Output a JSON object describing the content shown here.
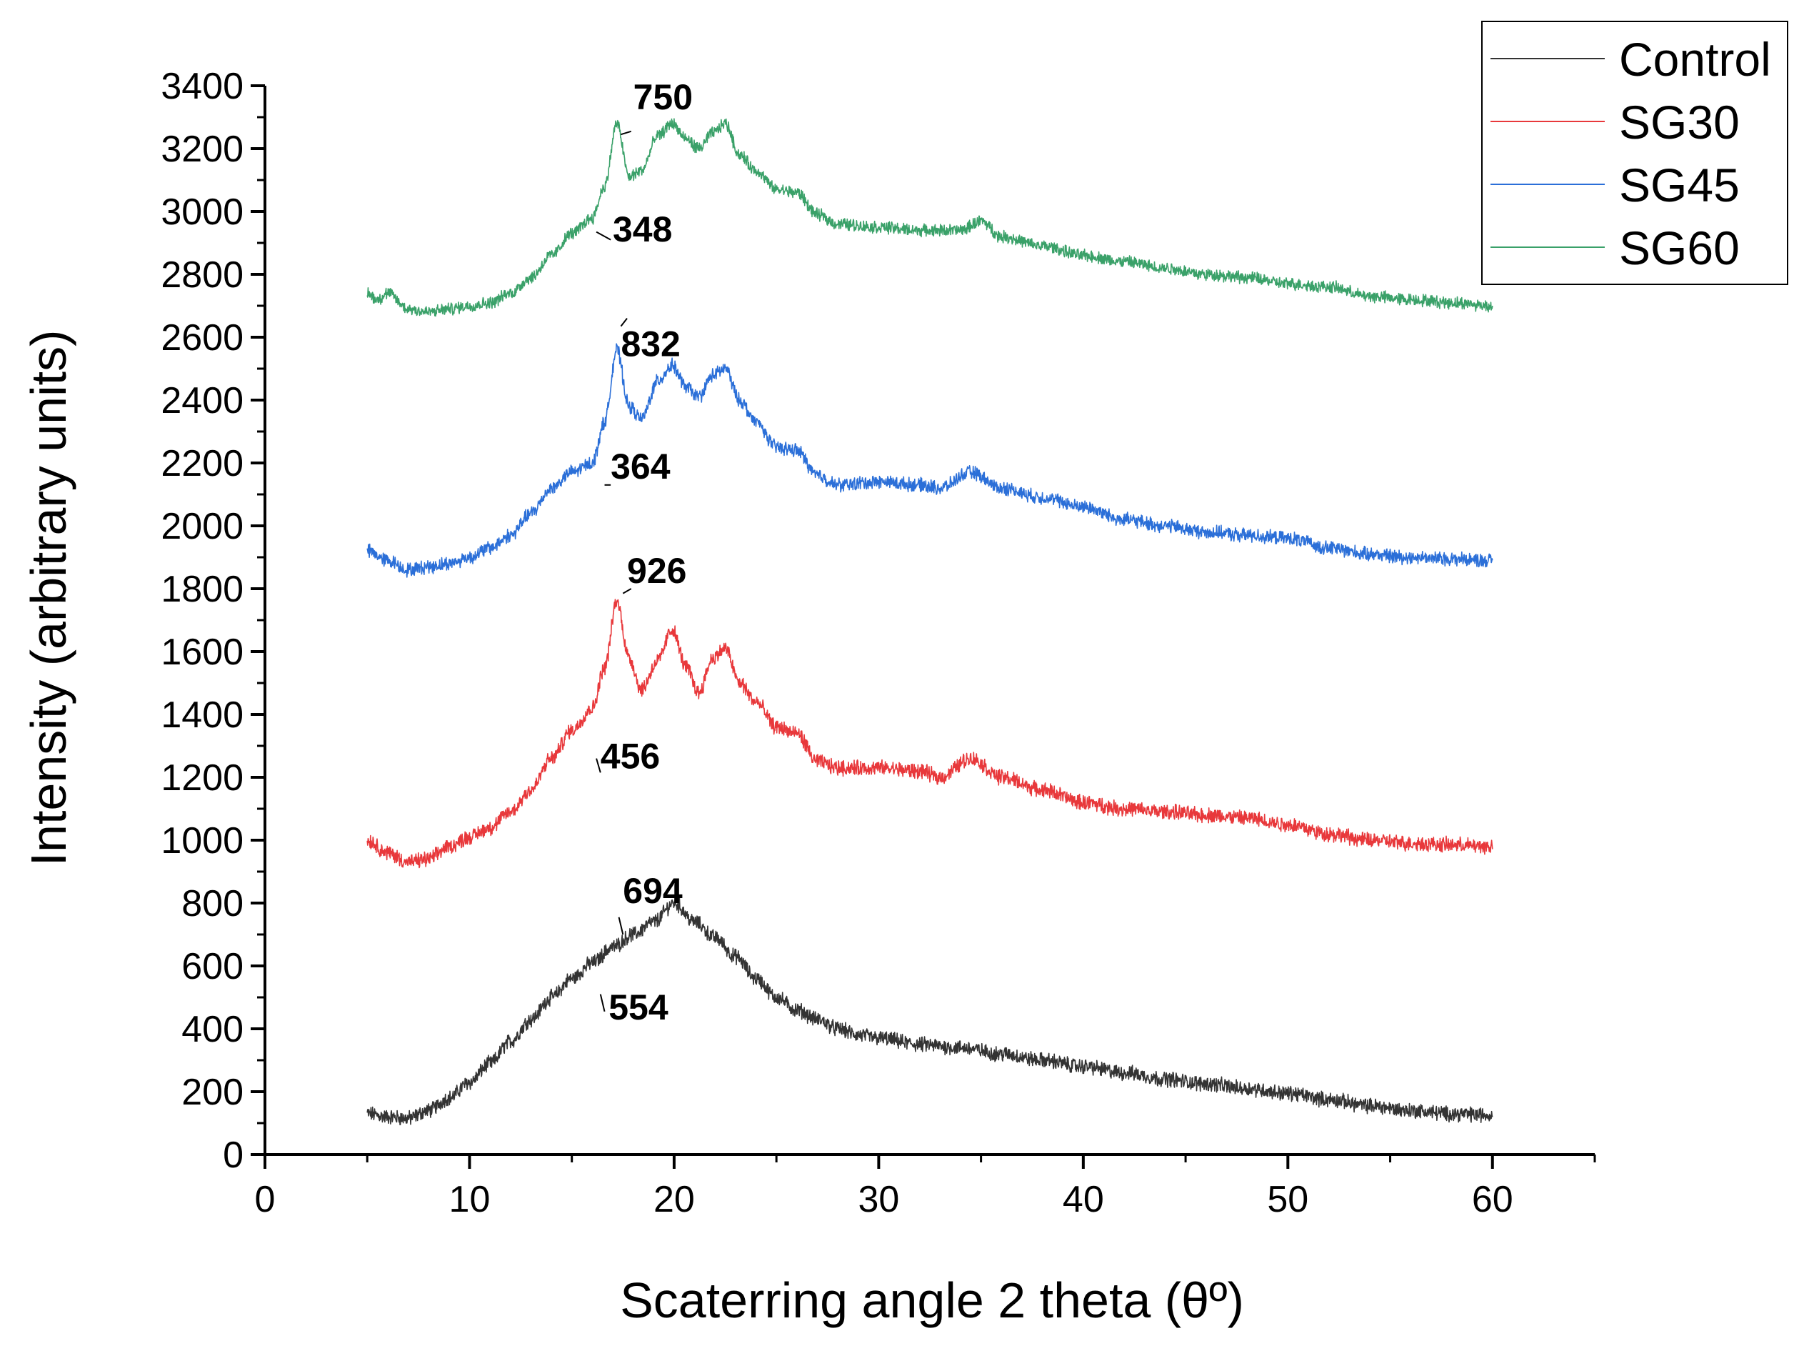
{
  "chart_data": {
    "type": "line",
    "title": "",
    "xlabel": "Scaterring angle 2 theta (θº)",
    "ylabel": "Intensity (arbitrary units)",
    "xlim": [
      0,
      65
    ],
    "ylim": [
      0,
      3400
    ],
    "x_ticks": [
      0,
      10,
      20,
      30,
      40,
      50,
      60
    ],
    "y_ticks": [
      0,
      200,
      400,
      600,
      800,
      1000,
      1200,
      1400,
      1600,
      1800,
      2000,
      2200,
      2400,
      2600,
      2800,
      3000,
      3200,
      3400
    ],
    "x_tick_labels": [
      "0",
      "10",
      "20",
      "30",
      "40",
      "50",
      "60"
    ],
    "y_tick_labels": [
      "0",
      "200",
      "400",
      "600",
      "800",
      "1000",
      "1200",
      "1400",
      "1600",
      "1800",
      "2000",
      "2200",
      "2400",
      "2600",
      "2800",
      "3000",
      "3200",
      "3400"
    ],
    "legend_position": "top-right",
    "series": [
      {
        "name": "Control",
        "color": "#333333",
        "x": [
          5,
          6,
          7,
          8,
          9,
          10,
          11,
          12,
          13,
          14,
          15,
          16,
          17,
          18,
          19,
          20,
          21,
          22,
          23,
          24,
          25,
          26,
          27,
          28,
          29,
          30,
          32,
          34,
          36,
          38,
          40,
          42,
          44,
          46,
          48,
          50,
          52,
          54,
          56,
          58,
          60
        ],
        "y": [
          130,
          120,
          115,
          140,
          180,
          230,
          290,
          360,
          430,
          500,
          560,
          610,
          660,
          700,
          740,
          800,
          740,
          690,
          630,
          560,
          500,
          460,
          430,
          400,
          380,
          370,
          350,
          340,
          320,
          300,
          280,
          260,
          240,
          225,
          210,
          195,
          175,
          155,
          140,
          130,
          125
        ],
        "noise": 20
      },
      {
        "name": "SG30",
        "color": "#e8383b",
        "x": [
          5,
          6,
          7,
          8,
          9,
          10,
          11,
          12,
          13,
          14,
          15,
          16,
          16.6,
          17.2,
          17.8,
          18.4,
          19.2,
          19.9,
          20.6,
          21.2,
          21.9,
          22.5,
          23.2,
          24,
          25,
          26,
          27,
          28,
          30,
          32,
          33,
          34.5,
          36,
          38,
          40,
          42,
          44,
          46,
          48,
          50,
          52,
          54,
          56,
          58,
          60
        ],
        "y": [
          1000,
          960,
          930,
          940,
          980,
          1010,
          1040,
          1090,
          1160,
          1260,
          1350,
          1420,
          1550,
          1760,
          1580,
          1480,
          1570,
          1670,
          1550,
          1470,
          1580,
          1610,
          1500,
          1440,
          1360,
          1340,
          1250,
          1230,
          1230,
          1220,
          1200,
          1260,
          1200,
          1160,
          1120,
          1100,
          1090,
          1080,
          1070,
          1050,
          1020,
          1000,
          990,
          985,
          980
        ],
        "noise": 20
      },
      {
        "name": "SG45",
        "color": "#2b6fd8",
        "x": [
          5,
          6,
          7,
          8,
          9,
          10,
          11,
          12,
          13,
          14,
          15,
          16,
          16.6,
          17.2,
          17.8,
          18.4,
          19.2,
          19.9,
          20.6,
          21.2,
          21.9,
          22.5,
          23.2,
          24,
          25,
          26,
          27,
          28,
          30,
          32,
          33,
          34.5,
          36,
          38,
          40,
          42,
          44,
          46,
          48,
          50,
          52,
          54,
          56,
          58,
          60
        ],
        "y": [
          1920,
          1890,
          1860,
          1870,
          1880,
          1900,
          1930,
          1970,
          2040,
          2120,
          2170,
          2200,
          2330,
          2560,
          2380,
          2340,
          2460,
          2510,
          2440,
          2410,
          2480,
          2500,
          2400,
          2330,
          2250,
          2240,
          2160,
          2130,
          2140,
          2130,
          2120,
          2170,
          2120,
          2090,
          2060,
          2020,
          2000,
          1980,
          1970,
          1960,
          1930,
          1910,
          1900,
          1895,
          1890
        ],
        "noise": 18
      },
      {
        "name": "SG60",
        "color": "#3aa169",
        "x": [
          5,
          5.5,
          6,
          7,
          8,
          9,
          10,
          11,
          12,
          13,
          14,
          15,
          16,
          16.6,
          17.2,
          17.8,
          18.4,
          19.2,
          19.9,
          20.6,
          21.2,
          21.9,
          22.5,
          23.2,
          24,
          25,
          26,
          27,
          28,
          30,
          32,
          34,
          35,
          36,
          38,
          40,
          42,
          44,
          46,
          48,
          50,
          52,
          54,
          56,
          58,
          60
        ],
        "y": [
          2740,
          2720,
          2740,
          2690,
          2680,
          2690,
          2700,
          2710,
          2740,
          2790,
          2860,
          2930,
          2980,
          3080,
          3280,
          3110,
          3130,
          3240,
          3280,
          3230,
          3200,
          3250,
          3280,
          3180,
          3130,
          3070,
          3060,
          2990,
          2960,
          2950,
          2940,
          2940,
          2970,
          2920,
          2890,
          2860,
          2840,
          2820,
          2800,
          2790,
          2770,
          2760,
          2730,
          2720,
          2710,
          2700
        ],
        "noise": 16
      }
    ],
    "annotations": [
      {
        "text": "750",
        "x": 18.0,
        "y": 3325,
        "lx1": 17.4,
        "ly1": 3245,
        "lx2": 17.9,
        "ly2": 3255
      },
      {
        "text": "348",
        "x": 17.0,
        "y": 2905,
        "lx1": 16.2,
        "ly1": 2935,
        "lx2": 16.9,
        "ly2": 2910
      },
      {
        "text": "832",
        "x": 17.4,
        "y": 2540,
        "lx1": 17.4,
        "ly1": 2635,
        "lx2": 17.7,
        "ly2": 2660
      },
      {
        "text": "364",
        "x": 16.9,
        "y": 2150,
        "lx1": 16.6,
        "ly1": 2130,
        "lx2": 16.9,
        "ly2": 2130
      },
      {
        "text": "926",
        "x": 17.7,
        "y": 1818,
        "lx1": 17.5,
        "ly1": 1785,
        "lx2": 17.9,
        "ly2": 1800
      },
      {
        "text": "456",
        "x": 16.4,
        "y": 1228,
        "lx1": 16.2,
        "ly1": 1260,
        "lx2": 16.4,
        "ly2": 1215
      },
      {
        "text": "694",
        "x": 17.5,
        "y": 800,
        "lx1": 17.3,
        "ly1": 755,
        "lx2": 17.5,
        "ly2": 700
      },
      {
        "text": "554",
        "x": 16.8,
        "y": 430,
        "lx1": 16.4,
        "ly1": 510,
        "lx2": 16.6,
        "ly2": 455
      }
    ]
  }
}
